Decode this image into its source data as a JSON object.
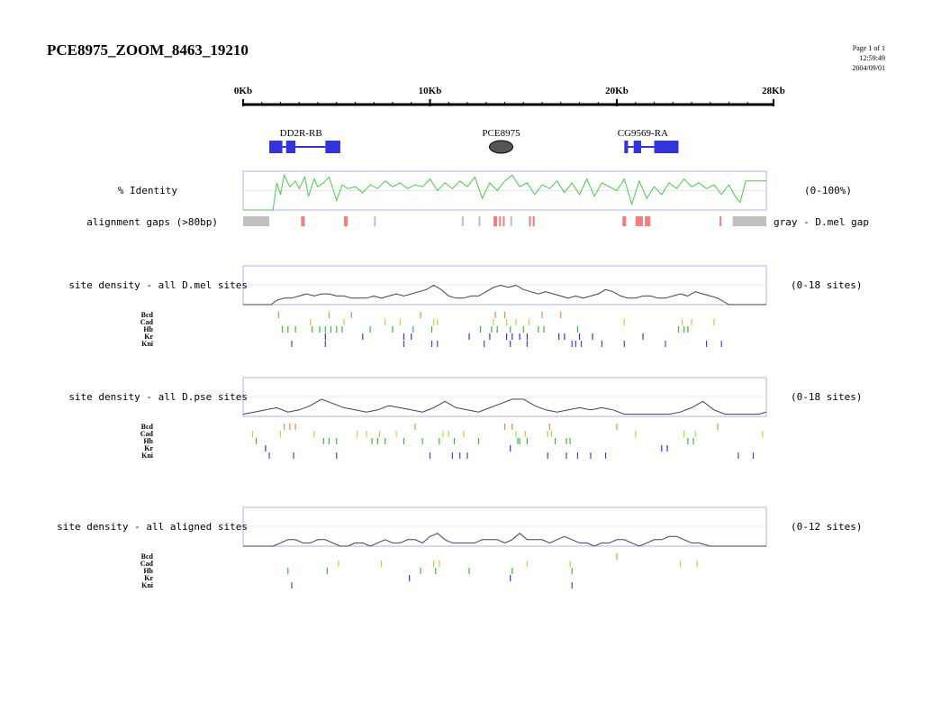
{
  "header": {
    "title": "PCE8975_ZOOM_8463_19210",
    "page": "Page 1 of 1",
    "time": "12:59:49",
    "date": "2004/09/01"
  },
  "colors": {
    "gene": "#3333dd",
    "identity_line": "#44cc44",
    "panel_border": "#aab4ee",
    "gap_red": "#f08080",
    "gap_gray": "#c0c0c0",
    "density_line": "#444444",
    "Bcd": "#e8894a",
    "Cad": "#cccc33",
    "Hb": "#33bb33",
    "Kr": "#3333dd",
    "Kni": "#6633cc"
  },
  "chart_data": {
    "type": "line",
    "x_axis": {
      "min_kb": 0,
      "max_kb": 28,
      "ticks": [
        {
          "kb": 0,
          "label": "0Kb"
        },
        {
          "kb": 10,
          "label": "10Kb"
        },
        {
          "kb": 20,
          "label": "20Kb"
        },
        {
          "kb": 28,
          "label": "28Kb"
        }
      ]
    },
    "genes": [
      {
        "name": "DD2R-RB",
        "label_kb": 2.9,
        "exons": [
          [
            1.4,
            2.1
          ],
          [
            2.3,
            2.8
          ],
          [
            4.4,
            5.2
          ]
        ],
        "introns": [
          [
            2.1,
            2.3
          ],
          [
            2.8,
            4.4
          ]
        ]
      },
      {
        "name": "CG9569-RA",
        "label_kb": 21.2,
        "exons": [
          [
            20.4,
            20.6
          ],
          [
            20.9,
            21.3
          ],
          [
            22.0,
            23.3
          ]
        ],
        "introns": [
          [
            20.6,
            20.9
          ],
          [
            21.3,
            22.0
          ]
        ]
      }
    ],
    "element": {
      "name": "PCE8975",
      "center_kb": 14.0
    },
    "identity": {
      "label": "% Identity",
      "range_label": "(0-100%)",
      "x_kb": [
        0,
        1.6,
        1.8,
        2.0,
        2.2,
        2.5,
        2.8,
        3.0,
        3.3,
        3.5,
        3.8,
        4.0,
        4.3,
        4.6,
        5.0,
        5.3,
        5.6,
        6.0,
        6.4,
        6.8,
        7.2,
        7.6,
        8.0,
        8.4,
        8.8,
        9.2,
        9.6,
        10.0,
        10.4,
        10.8,
        11.2,
        11.6,
        12.0,
        12.4,
        12.8,
        13.2,
        13.6,
        14.0,
        14.4,
        14.8,
        15.2,
        15.6,
        16.0,
        16.4,
        16.8,
        17.2,
        17.6,
        18.0,
        18.4,
        18.8,
        19.2,
        19.6,
        20.0,
        20.4,
        20.8,
        21.2,
        21.6,
        22.0,
        22.4,
        22.8,
        23.2,
        23.6,
        24.0,
        24.4,
        24.8,
        25.2,
        25.6,
        26.0,
        26.4,
        26.6,
        26.9,
        27.2,
        28.0
      ],
      "y_pct": [
        0,
        0,
        70,
        40,
        90,
        60,
        75,
        55,
        85,
        35,
        80,
        60,
        70,
        85,
        25,
        65,
        55,
        60,
        45,
        65,
        55,
        75,
        60,
        70,
        55,
        65,
        60,
        80,
        50,
        70,
        55,
        75,
        60,
        85,
        30,
        70,
        50,
        75,
        90,
        60,
        70,
        40,
        65,
        55,
        75,
        45,
        70,
        40,
        80,
        35,
        70,
        60,
        50,
        80,
        15,
        75,
        30,
        60,
        40,
        70,
        55,
        80,
        60,
        70,
        55,
        65,
        40,
        65,
        30,
        20,
        75,
        75,
        75
      ]
    },
    "alignment_gaps": {
      "label": "alignment gaps (>80bp)",
      "legend": "gray - D.mel gap",
      "red": [
        [
          3.1,
          3.3
        ],
        [
          5.4,
          5.6
        ],
        [
          13.4,
          13.6
        ],
        [
          13.7,
          13.8
        ],
        [
          13.9,
          14.0
        ],
        [
          15.3,
          15.4
        ],
        [
          15.5,
          15.6
        ],
        [
          20.3,
          20.5
        ],
        [
          21.0,
          21.4
        ],
        [
          21.5,
          21.8
        ],
        [
          25.5,
          25.6
        ]
      ],
      "gray": [
        [
          0,
          1.4
        ],
        [
          7.0,
          7.1
        ],
        [
          11.7,
          11.8
        ],
        [
          12.6,
          12.7
        ],
        [
          14.3,
          14.4
        ],
        [
          26.2,
          28.0
        ]
      ]
    },
    "panels": [
      {
        "label": "site density - all D.mel sites",
        "range_label": "(0-18 sites)",
        "x_kb": [
          0,
          1.5,
          1.8,
          2.2,
          2.6,
          3.0,
          3.4,
          3.8,
          4.2,
          4.6,
          5.0,
          5.4,
          5.8,
          6.2,
          6.6,
          7.0,
          7.4,
          7.8,
          8.2,
          8.6,
          9.0,
          9.4,
          9.8,
          10.2,
          10.6,
          11.0,
          11.4,
          11.8,
          12.2,
          12.6,
          13.0,
          13.4,
          13.8,
          14.2,
          14.6,
          15.0,
          15.4,
          15.8,
          16.2,
          16.6,
          17.0,
          17.4,
          17.8,
          18.2,
          18.6,
          19.0,
          19.4,
          19.8,
          20.2,
          20.6,
          21.0,
          21.4,
          21.8,
          22.2,
          22.6,
          23.0,
          23.4,
          23.8,
          24.2,
          24.6,
          25.0,
          25.4,
          26.0,
          28.0
        ],
        "y": [
          0,
          0,
          2,
          3,
          3,
          4,
          5,
          4,
          5,
          5,
          4,
          4,
          3,
          3,
          3,
          4,
          3,
          4,
          5,
          4,
          5,
          6,
          7,
          9,
          7,
          4,
          3,
          3,
          4,
          4,
          6,
          8,
          9,
          8,
          9,
          7,
          6,
          5,
          6,
          5,
          4,
          3,
          4,
          3,
          4,
          5,
          7,
          6,
          4,
          3,
          3,
          4,
          4,
          3,
          3,
          4,
          5,
          4,
          6,
          5,
          4,
          3,
          0,
          0
        ],
        "ymax": 18,
        "tracks": [
          {
            "name": "Bcd",
            "pos_kb": [
              1.9,
              4.6,
              5.8,
              9.5,
              13.5,
              14.0,
              16.0,
              17.0
            ]
          },
          {
            "name": "Cad",
            "pos_kb": [
              3.6,
              5.4,
              7.6,
              8.4,
              10.2,
              10.4,
              13.4,
              14.1,
              14.6,
              15.3,
              20.4,
              23.5,
              24.0,
              25.2
            ]
          },
          {
            "name": "Hb",
            "pos_kb": [
              2.1,
              2.4,
              2.8,
              3.7,
              4.1,
              4.4,
              4.7,
              5.0,
              5.3,
              6.8,
              8.0,
              9.1,
              10.1,
              12.7,
              13.3,
              13.6,
              14.3,
              15.0,
              15.8,
              16.1,
              17.9,
              23.3,
              23.6,
              23.8
            ]
          },
          {
            "name": "Kr",
            "pos_kb": [
              4.4,
              6.4,
              8.6,
              9.0,
              12.1,
              13.2,
              14.1,
              14.4,
              14.8,
              15.2,
              16.9,
              17.2,
              18.0,
              18.7,
              21.4
            ]
          },
          {
            "name": "Kni",
            "pos_kb": [
              2.6,
              4.4,
              8.6,
              10.1,
              10.4,
              12.9,
              14.3,
              15.2,
              17.6,
              17.8,
              18.1,
              19.2,
              20.4,
              22.6,
              24.8,
              25.6
            ]
          }
        ]
      },
      {
        "label": "site density - all D.pse sites",
        "range_label": "(0-18 sites)",
        "x_kb": [
          0,
          0.6,
          1.2,
          1.8,
          2.4,
          3.0,
          3.6,
          4.2,
          4.8,
          5.4,
          6.0,
          6.6,
          7.2,
          7.8,
          8.4,
          9.0,
          9.6,
          10.2,
          10.8,
          11.4,
          12.0,
          12.6,
          13.2,
          13.8,
          14.4,
          15.0,
          15.6,
          16.2,
          16.8,
          17.4,
          18.0,
          18.6,
          19.2,
          19.8,
          20.4,
          21.0,
          21.6,
          22.2,
          22.8,
          23.4,
          24.0,
          24.6,
          25.2,
          25.8,
          26.4,
          27.0,
          27.6,
          28.0
        ],
        "y": [
          1,
          2,
          3,
          4,
          2,
          3,
          5,
          8,
          6,
          4,
          3,
          2,
          3,
          5,
          4,
          3,
          2,
          4,
          7,
          4,
          3,
          2,
          4,
          6,
          8,
          8,
          5,
          3,
          2,
          3,
          4,
          3,
          4,
          3,
          1,
          1,
          1,
          1,
          1,
          2,
          4,
          7,
          3,
          1,
          1,
          1,
          1,
          2
        ],
        "ymax": 18,
        "tracks": [
          {
            "name": "Bcd",
            "pos_kb": [
              2.2,
              2.5,
              2.8,
              9.2,
              14.0,
              14.4,
              16.4,
              20.0,
              25.4
            ]
          },
          {
            "name": "Cad",
            "pos_kb": [
              0.5,
              2.0,
              3.8,
              6.1,
              6.6,
              7.3,
              8.2,
              10.7,
              11.0,
              11.8,
              14.6,
              15.1,
              16.3,
              16.5,
              21.0,
              23.6,
              24.2,
              27.8
            ]
          },
          {
            "name": "Hb",
            "pos_kb": [
              0.7,
              4.3,
              4.6,
              5.0,
              6.9,
              7.2,
              7.6,
              8.6,
              9.6,
              10.5,
              11.3,
              12.6,
              14.7,
              14.8,
              15.2,
              16.7,
              17.3,
              17.5,
              23.8,
              24.1
            ]
          },
          {
            "name": "Kr",
            "pos_kb": [
              1.2,
              14.3,
              22.4,
              22.7
            ]
          },
          {
            "name": "Kni",
            "pos_kb": [
              1.4,
              2.7,
              5.0,
              10.0,
              11.2,
              11.6,
              12.0,
              16.3,
              17.3,
              17.9,
              18.6,
              19.4,
              26.5,
              27.3
            ]
          }
        ]
      },
      {
        "label": "site density - all aligned sites",
        "range_label": "(0-12 sites)",
        "x_kb": [
          0,
          1.6,
          2.0,
          2.4,
          2.8,
          3.2,
          3.6,
          4.0,
          4.4,
          4.8,
          5.2,
          5.6,
          6.0,
          6.4,
          6.8,
          7.2,
          7.6,
          8.0,
          8.4,
          8.8,
          9.2,
          9.6,
          10.0,
          10.4,
          10.8,
          11.2,
          11.6,
          12.0,
          12.4,
          12.8,
          13.2,
          13.6,
          14.0,
          14.4,
          14.8,
          15.2,
          15.6,
          16.0,
          16.4,
          16.8,
          17.2,
          17.6,
          18.0,
          18.4,
          18.8,
          19.2,
          19.6,
          20.0,
          20.4,
          20.8,
          21.2,
          21.6,
          22.0,
          22.4,
          22.8,
          23.2,
          23.6,
          24.0,
          24.4,
          25.0,
          28.0
        ],
        "y": [
          0,
          0,
          1,
          2,
          2,
          1,
          1,
          2,
          2,
          1,
          0,
          0,
          1,
          1,
          0,
          1,
          2,
          1,
          1,
          2,
          2,
          1,
          3,
          4,
          2,
          1,
          1,
          1,
          1,
          2,
          2,
          2,
          1,
          2,
          4,
          2,
          2,
          2,
          1,
          2,
          3,
          2,
          1,
          1,
          0,
          1,
          1,
          2,
          2,
          1,
          0,
          1,
          2,
          2,
          3,
          3,
          2,
          1,
          1,
          0,
          0
        ],
        "ymax": 12,
        "tracks": [
          {
            "name": "Bcd",
            "pos_kb": [
              20.0
            ]
          },
          {
            "name": "Cad",
            "pos_kb": [
              5.1,
              7.4,
              10.2,
              10.5,
              15.2,
              17.5,
              23.4,
              24.3
            ]
          },
          {
            "name": "Hb",
            "pos_kb": [
              2.4,
              4.5,
              9.5,
              10.3,
              12.1,
              14.4,
              17.6
            ]
          },
          {
            "name": "Kr",
            "pos_kb": [
              8.9,
              14.3
            ]
          },
          {
            "name": "Kni",
            "pos_kb": [
              2.6,
              17.6
            ]
          }
        ]
      }
    ]
  }
}
